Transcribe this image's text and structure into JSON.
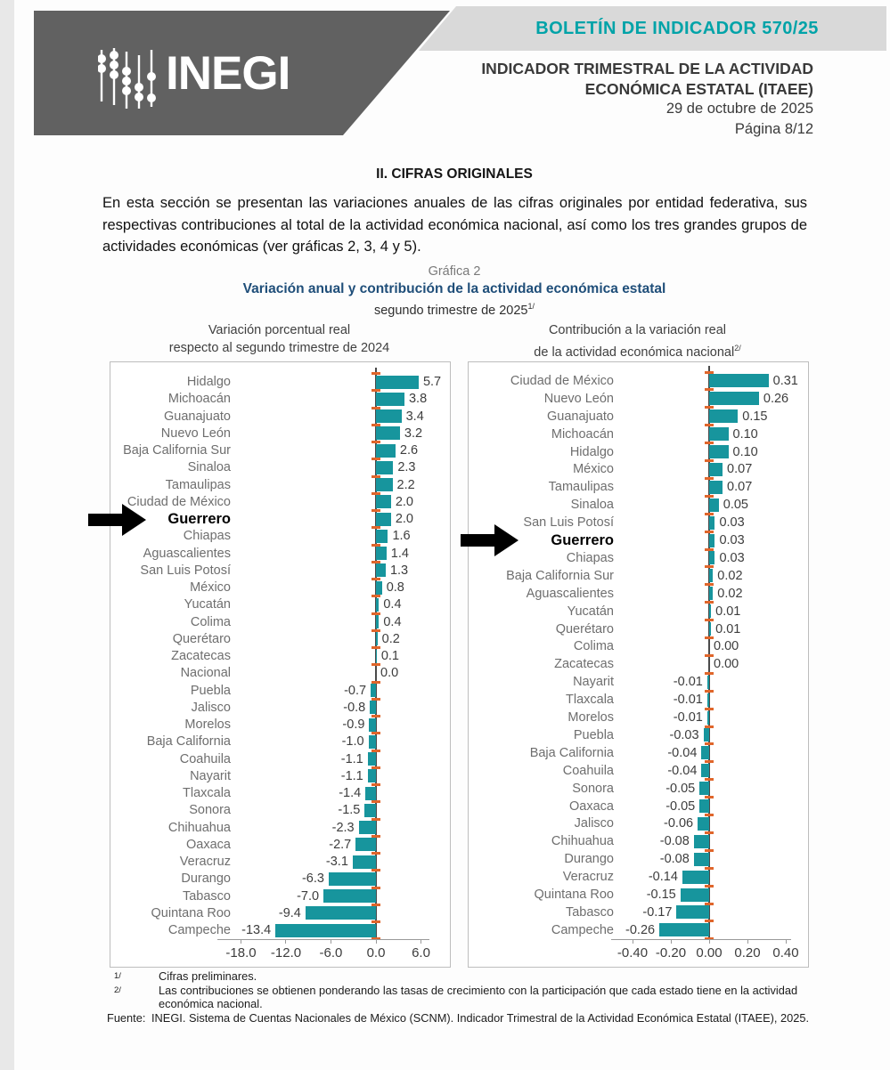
{
  "header": {
    "logo_text": "INEGI",
    "banner": "BOLETÍN DE INDICADOR 570/25",
    "title_line1": "INDICADOR TRIMESTRAL DE LA ACTIVIDAD",
    "title_line2": "ECONÓMICA ESTATAL (ITAEE)",
    "date": "29 de octubre de 2025",
    "page": "Página 8/12"
  },
  "section": {
    "heading": "II. CIFRAS ORIGINALES",
    "paragraph": "En esta sección se presentan las variaciones anuales de las cifras originales por entidad federativa, sus respectivas contribuciones al total de la actividad económica nacional, así como los tres grandes grupos de actividades económicas (ver gráficas 2, 3, 4 y 5)."
  },
  "figure": {
    "label": "Gráfica 2",
    "title": "Variación anual y contribución de la actividad económica estatal",
    "subtitle": "segundo trimestre de 2025",
    "subtitle_sup": "1/"
  },
  "chart_data": [
    {
      "type": "bar",
      "orientation": "horizontal",
      "title_lines": [
        "Variación porcentual real",
        "respecto al segundo trimestre de 2024"
      ],
      "highlight": "Guerrero",
      "xlim": [
        -21,
        7
      ],
      "x_ticks": [
        -18.0,
        -12.0,
        -6.0,
        0.0,
        6.0
      ],
      "categories": [
        "Hidalgo",
        "Michoacán",
        "Guanajuato",
        "Nuevo León",
        "Baja California Sur",
        "Sinaloa",
        "Tamaulipas",
        "Ciudad de México",
        "Guerrero",
        "Chiapas",
        "Aguascalientes",
        "San Luis Potosí",
        "México",
        "Yucatán",
        "Colima",
        "Querétaro",
        "Zacatecas",
        "Nacional",
        "Puebla",
        "Jalisco",
        "Morelos",
        "Baja California",
        "Coahuila",
        "Nayarit",
        "Tlaxcala",
        "Sonora",
        "Chihuahua",
        "Oaxaca",
        "Veracruz",
        "Durango",
        "Tabasco",
        "Quintana Roo",
        "Campeche"
      ],
      "values": [
        5.7,
        3.8,
        3.4,
        3.2,
        2.6,
        2.3,
        2.2,
        2.0,
        2.0,
        1.6,
        1.4,
        1.3,
        0.8,
        0.4,
        0.4,
        0.2,
        0.1,
        0.0,
        -0.7,
        -0.8,
        -0.9,
        -1.0,
        -1.1,
        -1.1,
        -1.4,
        -1.5,
        -2.3,
        -2.7,
        -3.1,
        -6.3,
        -7.0,
        -9.4,
        -13.4
      ]
    },
    {
      "type": "bar",
      "orientation": "horizontal",
      "title_lines": [
        "Contribución a la variación real",
        "de la actividad económica nacional"
      ],
      "title_sup": "2/",
      "highlight": "Guerrero",
      "xlim": [
        -0.5,
        0.43
      ],
      "x_ticks": [
        -0.4,
        -0.2,
        0.0,
        0.2,
        0.4
      ],
      "categories": [
        "Ciudad de México",
        "Nuevo León",
        "Guanajuato",
        "Michoacán",
        "Hidalgo",
        "México",
        "Tamaulipas",
        "Sinaloa",
        "San Luis Potosí",
        "Guerrero",
        "Chiapas",
        "Baja California Sur",
        "Aguascalientes",
        "Yucatán",
        "Querétaro",
        "Colima",
        "Zacatecas",
        "Nayarit",
        "Tlaxcala",
        "Morelos",
        "Puebla",
        "Baja California",
        "Coahuila",
        "Sonora",
        "Oaxaca",
        "Jalisco",
        "Chihuahua",
        "Durango",
        "Veracruz",
        "Quintana Roo",
        "Tabasco",
        "Campeche"
      ],
      "values": [
        0.31,
        0.26,
        0.15,
        0.1,
        0.1,
        0.07,
        0.07,
        0.05,
        0.03,
        0.03,
        0.03,
        0.02,
        0.02,
        0.01,
        0.01,
        0.0,
        0.0,
        -0.01,
        -0.01,
        -0.01,
        -0.03,
        -0.04,
        -0.04,
        -0.05,
        -0.05,
        -0.06,
        -0.08,
        -0.08,
        -0.14,
        -0.15,
        -0.17,
        -0.26
      ]
    }
  ],
  "footnotes": [
    {
      "marker": "1/",
      "text": "Cifras preliminares."
    },
    {
      "marker": "2/",
      "text": "Las contribuciones se obtienen ponderando las tasas de crecimiento con la participación que cada estado tiene en la actividad económica nacional."
    }
  ],
  "source": {
    "label": "Fuente:",
    "text": "INEGI. Sistema de Cuentas Nacionales de México (SCNM). Indicador Trimestral de la Actividad Económica Estatal (ITAEE), 2025."
  },
  "colors": {
    "bar_teal": "#17959d",
    "axis_marker_orange": "#e0662b",
    "title_blue": "#1f4e79",
    "banner_teal": "#00a3a8",
    "logo_gray": "#616161",
    "band_gray": "#d9d9d9"
  }
}
